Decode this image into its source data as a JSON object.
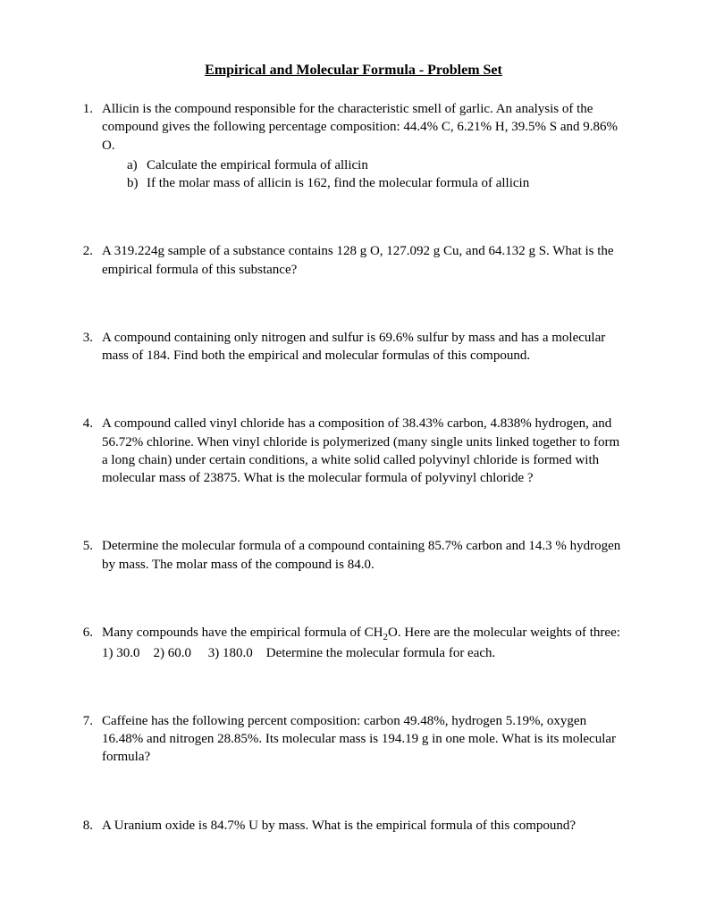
{
  "title": "Empirical and Molecular Formula - Problem Set",
  "problems": [
    {
      "number": "1.",
      "text": "Allicin is the compound responsible for the characteristic smell of garlic.  An analysis of the compound gives the following percentage composition:  44.4% C, 6.21% H, 39.5% S and 9.86% O.",
      "subitems": [
        {
          "letter": "a)",
          "text": "Calculate the empirical formula of allicin"
        },
        {
          "letter": "b)",
          "text": "If the molar mass of allicin is 162, find the molecular formula of allicin"
        }
      ]
    },
    {
      "number": "2.",
      "text": "A 319.224g sample of a substance contains 128 g O, 127.092 g Cu, and 64.132 g S. What is the empirical formula of this substance?"
    },
    {
      "number": "3.",
      "text": "A compound containing only nitrogen and sulfur is 69.6% sulfur by mass and has a molecular mass of 184.  Find both the empirical and molecular formulas of this compound."
    },
    {
      "number": "4.",
      "text": "A compound called vinyl chloride has a composition of 38.43% carbon, 4.838% hydrogen, and 56.72% chlorine.  When vinyl chloride is polymerized (many single units linked together to form a long chain) under certain conditions, a white solid called polyvinyl chloride is formed with molecular mass of 23875.  What is the molecular formula of polyvinyl chloride ?"
    },
    {
      "number": "5.",
      "text": "Determine the molecular formula of a compound containing 85.7% carbon and 14.3 % hydrogen by mass.  The molar mass of the compound is 84.0."
    },
    {
      "number": "6.",
      "text_pre": "Many compounds have the empirical formula of CH",
      "subscript": "2",
      "text_post": "O. Here are the molecular weights of three: 1) 30.0    2) 60.0     3) 180.0    Determine the molecular formula for each."
    },
    {
      "number": "7.",
      "text": "Caffeine has the following percent composition: carbon 49.48%, hydrogen 5.19%, oxygen 16.48% and nitrogen 28.85%. Its molecular mass is 194.19 g in one mole. What is its molecular formula?"
    },
    {
      "number": "8.",
      "text": "A Uranium oxide is 84.7% U by mass. What is the empirical formula of this compound?"
    }
  ]
}
